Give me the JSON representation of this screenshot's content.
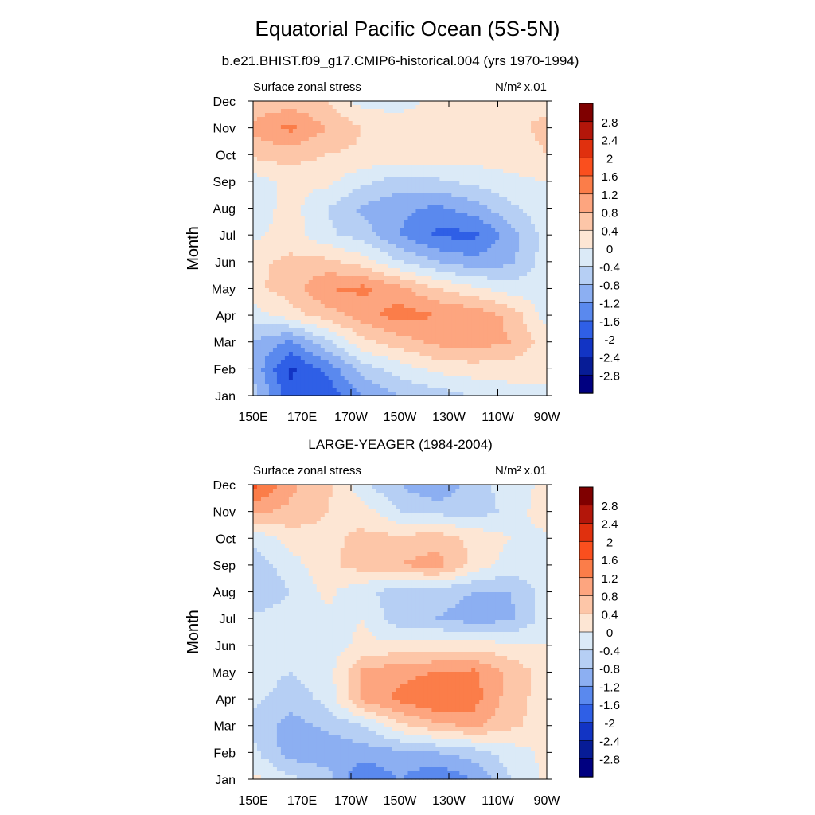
{
  "figure": {
    "title": "Equatorial Pacific Ocean (5S-5N)",
    "subtitle_top": "b.e21.BHIST.f09_g17.CMIP6-historical.004 (yrs 1970-1994)",
    "subtitle_bottom": "LARGE-YEAGER (1984-2004)"
  },
  "chart_data": [
    {
      "type": "heatmap",
      "panel": "top",
      "left_label": "Surface zonal stress",
      "units_label": "N/m² x.01",
      "ylabel": "Month",
      "xlabel": "",
      "x_ticks": [
        "150E",
        "170E",
        "170W",
        "150W",
        "130W",
        "110W",
        "90W"
      ],
      "x_values_deg_east": [
        150,
        170,
        190,
        210,
        230,
        250,
        270
      ],
      "y_ticks": [
        "Jan",
        "Feb",
        "Mar",
        "Apr",
        "May",
        "Jun",
        "Jul",
        "Aug",
        "Sep",
        "Oct",
        "Nov",
        "Dec"
      ],
      "xlim": [
        150,
        270
      ],
      "ylim": [
        1,
        12
      ],
      "colorbar_levels": [
        "2.8",
        "2.4",
        "2",
        "1.6",
        "1.2",
        "0.8",
        "0.4",
        "0",
        "-0.4",
        "-0.8",
        "-1.2",
        "-1.6",
        "-2",
        "-2.4",
        "-2.8"
      ],
      "values_note_lon": [
        150,
        165,
        180,
        195,
        210,
        225,
        240,
        255,
        270
      ],
      "grid": [
        [
          -0.6,
          -1.9,
          -1.9,
          -1.2,
          -0.8,
          -0.6,
          -0.4,
          -0.2,
          -0.1
        ],
        [
          -0.9,
          -2.1,
          -1.5,
          -0.6,
          -0.2,
          0.1,
          0.2,
          0.2,
          0.1
        ],
        [
          -0.8,
          -1.3,
          -0.5,
          0.3,
          0.6,
          0.9,
          1.0,
          0.8,
          0.2
        ],
        [
          -0.2,
          0.2,
          0.6,
          1.0,
          1.4,
          1.2,
          1.1,
          0.7,
          -0.2
        ],
        [
          0.3,
          0.6,
          1.2,
          1.3,
          0.9,
          0.4,
          0.1,
          -0.2,
          -0.2
        ],
        [
          0.3,
          0.5,
          0.5,
          0.2,
          -0.4,
          -0.8,
          -1.1,
          -0.9,
          -0.2
        ],
        [
          -0.1,
          0.2,
          -0.3,
          -0.6,
          -1.2,
          -1.7,
          -1.7,
          -1.0,
          -0.2
        ],
        [
          -0.3,
          0.2,
          -0.4,
          -0.9,
          -1.1,
          -1.3,
          -1.0,
          -0.5,
          -0.1
        ],
        [
          -0.2,
          0.1,
          0.1,
          -0.3,
          -0.6,
          -0.5,
          -0.3,
          -0.1,
          0.0
        ],
        [
          0.5,
          0.6,
          0.4,
          0.3,
          0.3,
          0.3,
          0.2,
          0.2,
          0.4
        ],
        [
          0.9,
          1.3,
          0.8,
          0.4,
          0.3,
          0.3,
          0.3,
          0.3,
          0.5
        ],
        [
          0.5,
          0.6,
          0.4,
          -0.2,
          -0.2,
          0.1,
          0.3,
          0.3,
          0.3
        ]
      ]
    },
    {
      "type": "heatmap",
      "panel": "bottom",
      "left_label": "Surface zonal stress",
      "units_label": "N/m² x.01",
      "ylabel": "Month",
      "xlabel": "",
      "x_ticks": [
        "150E",
        "170E",
        "170W",
        "150W",
        "130W",
        "110W",
        "90W"
      ],
      "x_values_deg_east": [
        150,
        170,
        190,
        210,
        230,
        250,
        270
      ],
      "y_ticks": [
        "Jan",
        "Feb",
        "Mar",
        "Apr",
        "May",
        "Jun",
        "Jul",
        "Aug",
        "Sep",
        "Oct",
        "Nov",
        "Dec"
      ],
      "xlim": [
        150,
        270
      ],
      "ylim": [
        1,
        12
      ],
      "colorbar_levels": [
        "2.8",
        "2.4",
        "2",
        "1.6",
        "1.2",
        "0.8",
        "0.4",
        "0",
        "-0.4",
        "-0.8",
        "-1.2",
        "-1.6",
        "-2",
        "-2.4",
        "-2.8"
      ],
      "values_note_lon": [
        150,
        165,
        180,
        195,
        210,
        225,
        240,
        255,
        270
      ],
      "grid": [
        [
          0.1,
          -0.3,
          -0.6,
          -1.6,
          -1.2,
          -1.6,
          -1.2,
          -0.4,
          0.1
        ],
        [
          -0.3,
          -1.0,
          -1.1,
          -1.0,
          -0.9,
          -0.8,
          -0.6,
          -0.2,
          0.1
        ],
        [
          -0.5,
          -1.0,
          -0.7,
          -0.4,
          0.3,
          0.7,
          0.9,
          0.5,
          0.2
        ],
        [
          -0.3,
          -0.6,
          -0.3,
          0.9,
          1.3,
          1.6,
          1.4,
          0.6,
          0.2
        ],
        [
          -0.2,
          -0.4,
          -0.2,
          0.9,
          1.1,
          1.2,
          1.3,
          0.7,
          0.2
        ],
        [
          -0.2,
          -0.3,
          -0.2,
          0.1,
          0.1,
          0.2,
          0.2,
          0.1,
          0.0
        ],
        [
          -0.3,
          -0.2,
          -0.1,
          0.0,
          -0.7,
          -0.8,
          -1.0,
          -0.9,
          -0.2
        ],
        [
          -0.8,
          -0.4,
          0.1,
          -0.3,
          -0.6,
          -0.6,
          -0.8,
          -0.8,
          -0.2
        ],
        [
          -0.6,
          -0.2,
          0.3,
          0.6,
          0.8,
          1.0,
          0.3,
          -0.2,
          -0.1
        ],
        [
          -0.3,
          0.2,
          0.3,
          0.5,
          0.5,
          0.6,
          0.3,
          0.0,
          -0.1
        ],
        [
          0.9,
          0.7,
          0.4,
          0.2,
          -0.4,
          -0.5,
          -0.6,
          -0.3,
          0.3
        ],
        [
          1.8,
          0.9,
          0.5,
          -0.3,
          -0.8,
          -1.2,
          -0.6,
          -0.2,
          0.1
        ]
      ]
    }
  ],
  "colors": {
    "levels": [
      "#7f0000",
      "#b3160a",
      "#e0300e",
      "#fa4f1e",
      "#fb7d49",
      "#fda57f",
      "#fdc6a8",
      "#fde6d4",
      "#dbeaf7",
      "#b6cff4",
      "#8caff2",
      "#5a89ee",
      "#2f5fe6",
      "#1234c4",
      "#071c96",
      "#000080"
    ]
  }
}
